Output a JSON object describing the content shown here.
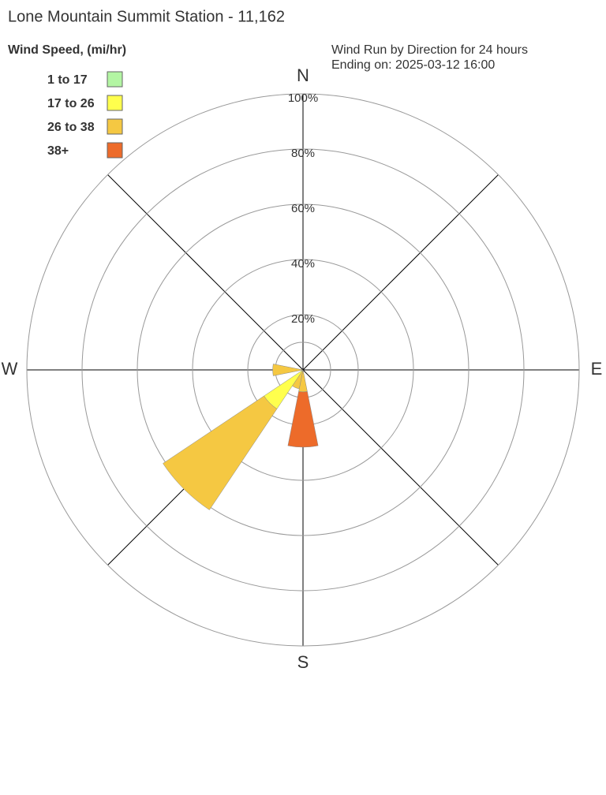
{
  "chart_data": {
    "type": "windrose",
    "title": "Lone Mountain Summit Station - 11,162",
    "legend_title": "Wind Speed, (mi/hr)",
    "annotations": [
      "Wind Run by Direction for 24 hours",
      "Ending on: 2025-03-12 16:00"
    ],
    "categories": [
      "N",
      null,
      null,
      null,
      "E",
      null,
      null,
      null,
      "S",
      null,
      null,
      null,
      "W",
      null,
      null,
      null
    ],
    "series": [
      {
        "name": "1 to 17",
        "color": "#b3f5a3",
        "values": [
          0,
          0,
          0,
          0,
          0,
          0,
          0,
          0,
          0,
          0,
          0,
          0,
          0,
          0,
          0,
          0
        ]
      },
      {
        "name": "17 to 26",
        "color": "#ffff4d",
        "values": [
          0,
          0,
          0,
          0,
          0,
          0,
          0,
          0,
          0,
          0,
          17,
          0,
          0,
          0,
          0,
          0
        ]
      },
      {
        "name": "26 to 38",
        "color": "#f5c842",
        "values": [
          0,
          0,
          0,
          0,
          0,
          0,
          0,
          0,
          8,
          7,
          44,
          0,
          11,
          0,
          0,
          0
        ]
      },
      {
        "name": "38+",
        "color": "#ed6b2a",
        "values": [
          0,
          0,
          0,
          0,
          0,
          0,
          0,
          0,
          20,
          0,
          0,
          0,
          0,
          0,
          0,
          0
        ]
      }
    ],
    "rlim": [
      0,
      100
    ],
    "rticks": [
      {
        "value": 20,
        "label": "20%"
      },
      {
        "value": 40,
        "label": "40%"
      },
      {
        "value": 60,
        "label": "60%"
      },
      {
        "value": 80,
        "label": "80%"
      },
      {
        "value": 100,
        "label": "100%"
      }
    ],
    "grid": true
  }
}
